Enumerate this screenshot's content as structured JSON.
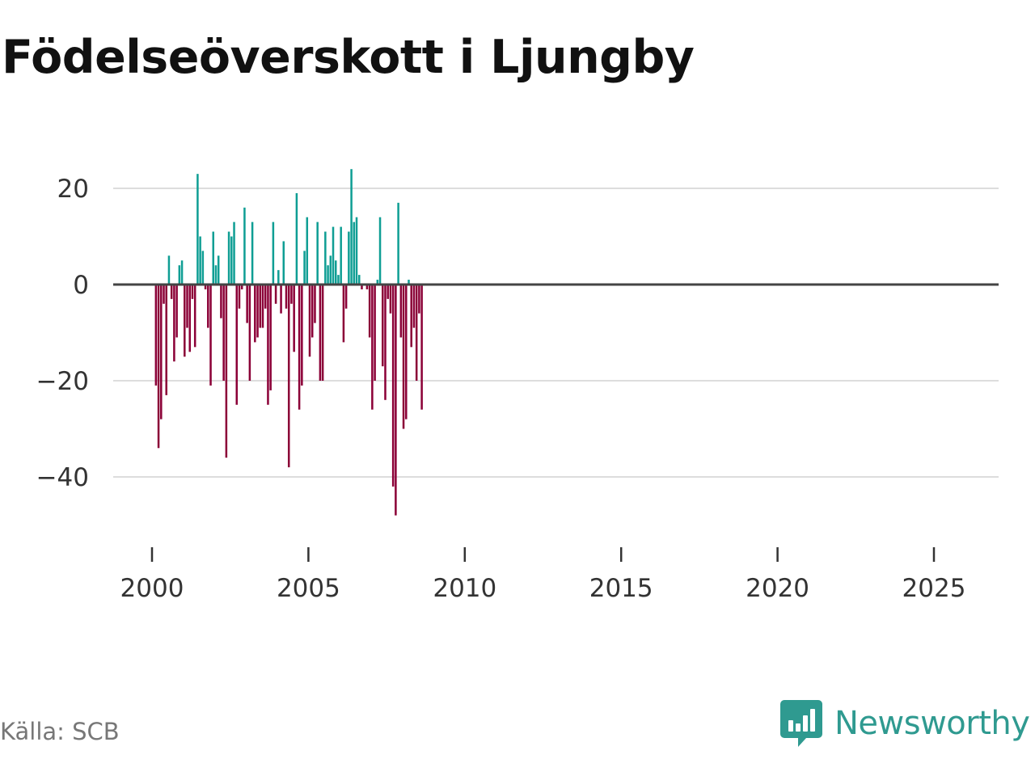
{
  "title": "Födelseöverskott i Ljungby",
  "source": "Källa: SCB",
  "brand": "Newsworthy",
  "colors": {
    "positive": "#0f9e94",
    "negative": "#8b0037",
    "gridline": "#dddddd",
    "zeroline": "#444444",
    "brand": "#2f9a90"
  },
  "chart_data": {
    "type": "bar",
    "title": "Födelseöverskott i Ljungby",
    "xlabel": "",
    "ylabel": "",
    "ylim": [
      -50,
      27
    ],
    "xlim": [
      1998.3,
      2026.7
    ],
    "yticks": [
      20,
      0,
      -20,
      -40
    ],
    "ytick_labels": [
      "20",
      "0",
      "−20",
      "−40"
    ],
    "xticks": [
      2000,
      2005,
      2010,
      2015,
      2020,
      2025
    ],
    "xtick_labels": [
      "2000",
      "2005",
      "2010",
      "2015",
      "2020",
      "2025"
    ],
    "grid": true,
    "start_year": 2000,
    "start_month": 2,
    "values": [
      -21,
      -34,
      -28,
      -4,
      -23,
      6,
      -3,
      -16,
      -11,
      4,
      5,
      -15,
      -9,
      -14,
      -3,
      -13,
      23,
      10,
      7,
      -1,
      -9,
      -21,
      11,
      4,
      6,
      -7,
      -20,
      -36,
      11,
      10,
      13,
      -25,
      -5,
      -1,
      16,
      -8,
      -20,
      13,
      -12,
      -11,
      -9,
      -9,
      -5,
      -25,
      -22,
      13,
      -4,
      3,
      -6,
      9,
      -5,
      -38,
      -4,
      -14,
      19,
      -26,
      -21,
      7,
      14,
      -15,
      -11,
      -8,
      13,
      -20,
      -20,
      11,
      4,
      6,
      12,
      5,
      2,
      12,
      -12,
      -5,
      11,
      24,
      13,
      14,
      2,
      -1,
      0,
      -1,
      -11,
      -26,
      -20,
      1,
      14,
      -17,
      -24,
      -3,
      -6,
      -42,
      -48,
      17,
      -11,
      -30,
      -28,
      1,
      -13,
      -9,
      -20,
      -6,
      -26
    ]
  }
}
